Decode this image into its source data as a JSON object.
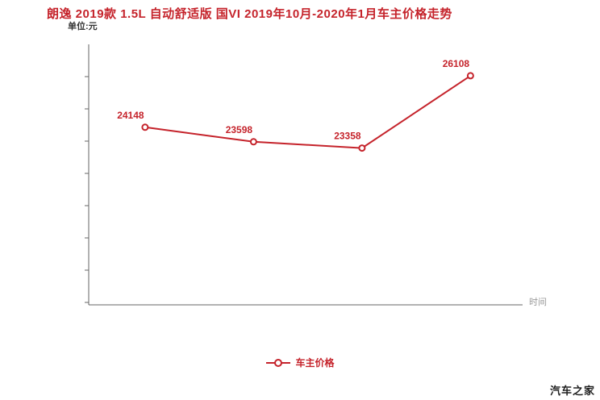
{
  "title": "朗逸 2019款 1.5L 自动舒适版 国VI 2019年10月-2020年1月车主价格走势",
  "unit_label": "单位:元",
  "x_axis_label": "时间",
  "legend_label": "车主价格",
  "watermark": "汽车之家",
  "colors": {
    "accent": "#c5232b",
    "axis": "#666666",
    "muted": "#999999"
  },
  "chart_data": {
    "type": "line",
    "title": "朗逸 2019款 1.5L 自动舒适版 国VI 2019年10月-2020年1月车主价格走势",
    "ylabel": "单位:元",
    "xlabel": "时间",
    "series": [
      {
        "name": "车主价格",
        "values": [
          24148,
          23598,
          23358,
          26108
        ]
      }
    ],
    "point_labels": [
      "24148",
      "23598",
      "23358",
      "26108"
    ],
    "ylim": [
      17400,
      27300
    ],
    "grid": false,
    "legend_position": "bottom"
  }
}
